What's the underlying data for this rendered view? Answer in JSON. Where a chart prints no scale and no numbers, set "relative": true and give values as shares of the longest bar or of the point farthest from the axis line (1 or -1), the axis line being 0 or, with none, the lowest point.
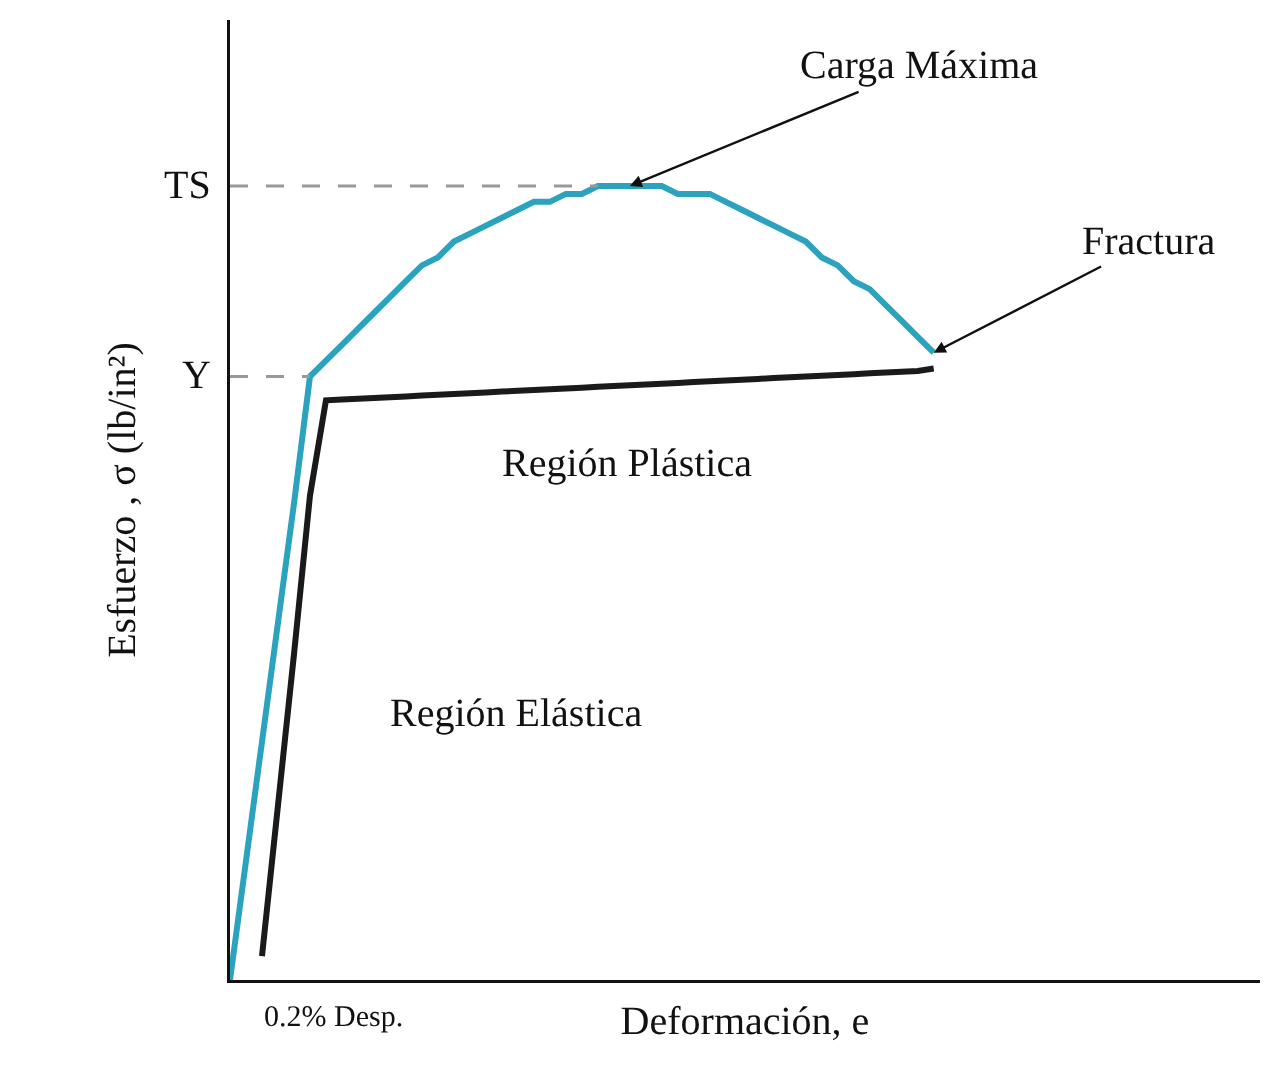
{
  "chart_data": {
    "type": "line",
    "relative": true,
    "xlabel": "Deformación, e",
    "ylabel": "Esfuerzo , σ (lb/in²)",
    "categories": [
      null,
      null,
      null,
      null,
      null,
      null,
      null,
      null,
      null,
      null,
      null,
      null,
      null,
      null,
      null,
      null,
      null,
      null,
      null,
      null,
      null,
      null,
      null,
      null,
      null,
      null,
      null,
      null,
      null,
      null,
      null,
      null,
      null,
      null,
      null,
      null,
      null,
      null,
      null,
      null,
      null,
      null,
      null,
      null,
      null
    ],
    "series": [
      {
        "color": "#2ba3bf",
        "values": [
          0,
          0.15,
          0.3,
          0.45,
          0.6,
          0.76,
          0.78,
          0.8,
          0.82,
          0.84,
          0.86,
          0.88,
          0.9,
          0.91,
          0.93,
          0.94,
          0.95,
          0.96,
          0.97,
          0.98,
          0.98,
          0.99,
          0.99,
          1,
          1,
          1,
          1,
          1,
          0.99,
          0.99,
          0.99,
          0.98,
          0.97,
          0.96,
          0.95,
          0.94,
          0.93,
          0.91,
          0.9,
          0.88,
          0.87,
          0.85,
          0.83,
          0.81,
          0.79
        ]
      },
      {
        "color": "#1a1a1a",
        "values": [
          null,
          null,
          0.03,
          0.22,
          0.41,
          0.61,
          0.73,
          0.731,
          0.732,
          0.733,
          0.734,
          0.735,
          0.736,
          0.737,
          0.738,
          0.739,
          0.74,
          0.741,
          0.742,
          0.743,
          0.744,
          0.745,
          0.746,
          0.747,
          0.748,
          0.749,
          0.75,
          0.751,
          0.752,
          0.753,
          0.754,
          0.755,
          0.756,
          0.757,
          0.758,
          0.759,
          0.76,
          0.761,
          0.762,
          0.763,
          0.764,
          0.765,
          0.766,
          0.767,
          0.77
        ]
      }
    ],
    "ref_lines": [
      {
        "axis": "y",
        "value": 1,
        "label": "TS",
        "color": "#999999",
        "line_style": "dashed"
      },
      {
        "axis": "y",
        "value": 0.76,
        "label": "Y",
        "color": "#999999",
        "line_style": "dashed"
      }
    ],
    "annotations": [
      "Carga Máxima",
      "Fractura",
      "Región Plástica",
      "Región Elástica",
      "0.2% Desp."
    ],
    "marker": "none",
    "line_style": "solid"
  }
}
